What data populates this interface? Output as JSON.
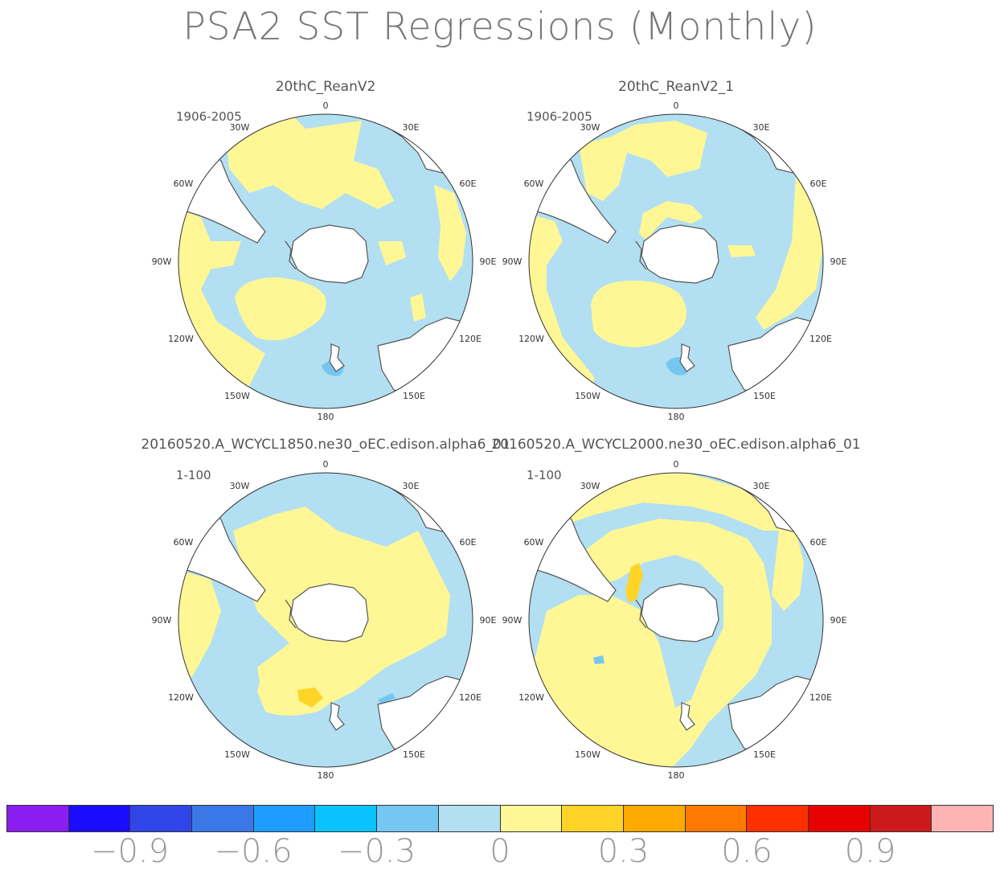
{
  "title": "PSA2 SST Regressions (Monthly)",
  "colors": {
    "ocean_neg": "#b2dff2",
    "ocean_pos": "#fff796",
    "strong_pos": "#ffd428",
    "strong_neg": "#76c6f2",
    "land": "#ffffff",
    "coast": "#555555"
  },
  "panels": [
    {
      "title": "20thC_ReanV2",
      "period": "1906-2005"
    },
    {
      "title": "20thC_ReanV2_1",
      "period": "1906-2005"
    },
    {
      "title": "20160520.A_WCYCL1850.ne30_oEC.edison.alpha6_01",
      "period": "1-100"
    },
    {
      "title": "20160520.A_WCYCL2000.ne30_oEC.edison.alpha6_01",
      "period": "1-100"
    }
  ],
  "lon_labels": [
    "0",
    "30E",
    "60E",
    "90E",
    "120E",
    "150E",
    "180",
    "150W",
    "120W",
    "90W",
    "60W",
    "30W"
  ],
  "chart_data": {
    "type": "heatmap",
    "title": "PSA2 SST Regressions (Monthly)",
    "projection": "south polar stereographic",
    "colorbar": {
      "colors": [
        "#8a1ef0",
        "#1a0cff",
        "#2f45e8",
        "#3a78e8",
        "#1e9cff",
        "#08c3ff",
        "#76c6f2",
        "#b2dff2",
        "#fff796",
        "#ffd428",
        "#ffaa00",
        "#ff7800",
        "#ff3000",
        "#e60000",
        "#cc1a1a",
        "#ffb4b4"
      ],
      "tick_labels": [
        "-0.9",
        "-0.6",
        "-0.3",
        "0",
        "0.3",
        "0.6",
        "0.9"
      ],
      "tick_values": [
        -0.9,
        -0.6,
        -0.3,
        0,
        0.3,
        0.6,
        0.9
      ]
    }
  }
}
